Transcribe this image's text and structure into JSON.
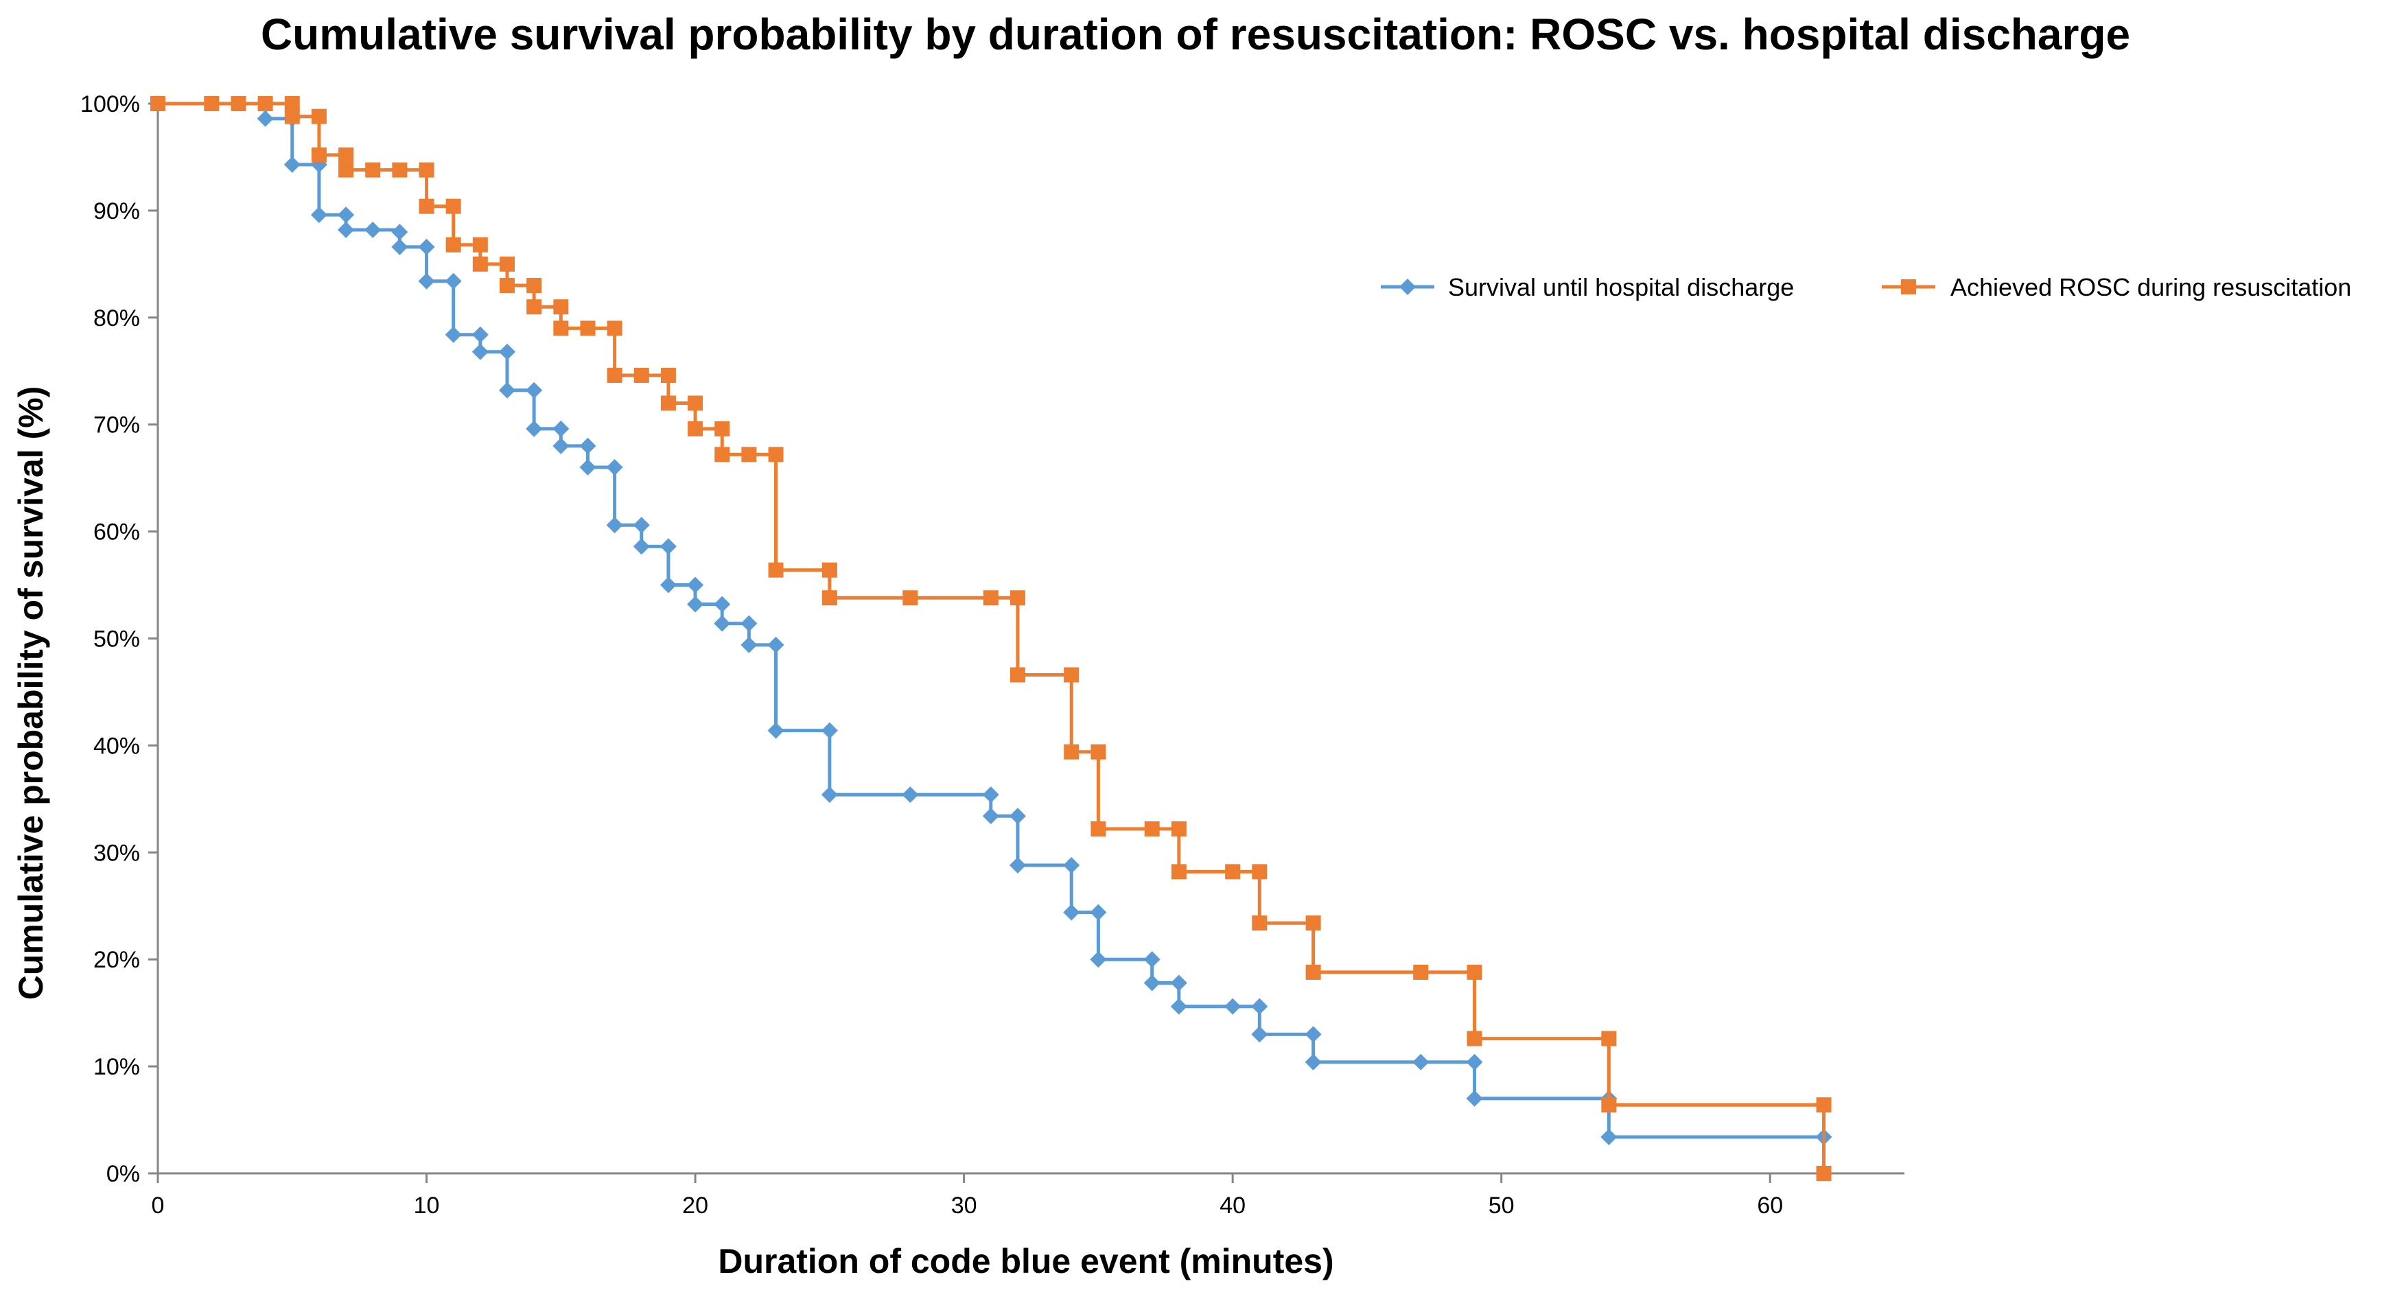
{
  "chart_data": {
    "type": "line",
    "step": true,
    "title": "Cumulative survival probability by duration of resuscitation: ROSC vs. hospital discharge",
    "xlabel": "Duration of code blue event (minutes)",
    "ylabel": "Cumulative probability of survival (%)",
    "xlim": [
      0,
      65
    ],
    "ylim": [
      0,
      100
    ],
    "x_ticks": [
      0,
      10,
      20,
      30,
      40,
      50,
      60
    ],
    "x_tick_labels": [
      "0",
      "10",
      "20",
      "30",
      "40",
      "50",
      "60"
    ],
    "y_ticks": [
      0,
      10,
      20,
      30,
      40,
      50,
      60,
      70,
      80,
      90,
      100
    ],
    "y_tick_labels": [
      "0%",
      "10%",
      "20%",
      "30%",
      "40%",
      "50%",
      "60%",
      "70%",
      "80%",
      "90%",
      "100%"
    ],
    "grid": false,
    "legend_position": "right",
    "series": [
      {
        "name": "Survival until hospital discharge",
        "color": "#5B9BD5",
        "marker": "diamond",
        "x": [
          0,
          4,
          5,
          5,
          6,
          6,
          7,
          7,
          8,
          9,
          9,
          10,
          10,
          11,
          11,
          12,
          12,
          13,
          13,
          14,
          14,
          15,
          15,
          16,
          16,
          17,
          17,
          18,
          18,
          19,
          19,
          20,
          20,
          21,
          21,
          22,
          22,
          23,
          23,
          25,
          25,
          28,
          31,
          31,
          32,
          32,
          34,
          34,
          35,
          35,
          37,
          37,
          38,
          38,
          40,
          41,
          41,
          43,
          43,
          47,
          49,
          49,
          54,
          54,
          62
        ],
        "y": [
          100,
          98.6,
          98.6,
          94.3,
          94.3,
          89.6,
          89.6,
          88.2,
          88.2,
          88.0,
          86.6,
          86.6,
          83.4,
          83.4,
          78.4,
          78.4,
          76.8,
          76.8,
          73.2,
          73.2,
          69.6,
          69.6,
          68.0,
          68.0,
          66.0,
          66.0,
          60.6,
          60.6,
          58.6,
          58.6,
          55.0,
          55.0,
          53.2,
          53.2,
          51.4,
          51.4,
          49.4,
          49.4,
          41.4,
          41.4,
          35.4,
          35.4,
          35.4,
          33.4,
          33.4,
          28.8,
          28.8,
          24.4,
          24.4,
          20.0,
          20.0,
          17.8,
          17.8,
          15.6,
          15.6,
          15.6,
          13.0,
          13.0,
          10.4,
          10.4,
          10.4,
          7.0,
          7.0,
          3.4,
          3.4
        ]
      },
      {
        "name": "Achieved ROSC during resuscitation",
        "color": "#ED7D31",
        "marker": "square",
        "x": [
          0,
          2,
          3,
          4,
          5,
          5,
          6,
          6,
          7,
          7,
          8,
          9,
          10,
          10,
          11,
          11,
          12,
          12,
          13,
          13,
          14,
          14,
          15,
          15,
          16,
          17,
          17,
          18,
          19,
          19,
          20,
          20,
          21,
          21,
          22,
          23,
          23,
          25,
          25,
          28,
          31,
          32,
          32,
          34,
          34,
          35,
          35,
          37,
          38,
          38,
          40,
          41,
          41,
          43,
          43,
          47,
          49,
          49,
          54,
          54,
          62,
          62
        ],
        "y": [
          100,
          100,
          100,
          100,
          100,
          98.8,
          98.8,
          95.2,
          95.2,
          93.8,
          93.8,
          93.8,
          93.8,
          90.4,
          90.4,
          86.8,
          86.8,
          85.0,
          85.0,
          83.0,
          83.0,
          81.0,
          81.0,
          79.0,
          79.0,
          79.0,
          74.6,
          74.6,
          74.6,
          72.0,
          72.0,
          69.6,
          69.6,
          67.2,
          67.2,
          67.2,
          56.4,
          56.4,
          53.8,
          53.8,
          53.8,
          53.8,
          46.6,
          46.6,
          39.4,
          39.4,
          32.2,
          32.2,
          32.2,
          28.2,
          28.2,
          28.2,
          23.4,
          23.4,
          18.8,
          18.8,
          18.8,
          12.6,
          12.6,
          6.4,
          6.4,
          0
        ]
      }
    ]
  }
}
